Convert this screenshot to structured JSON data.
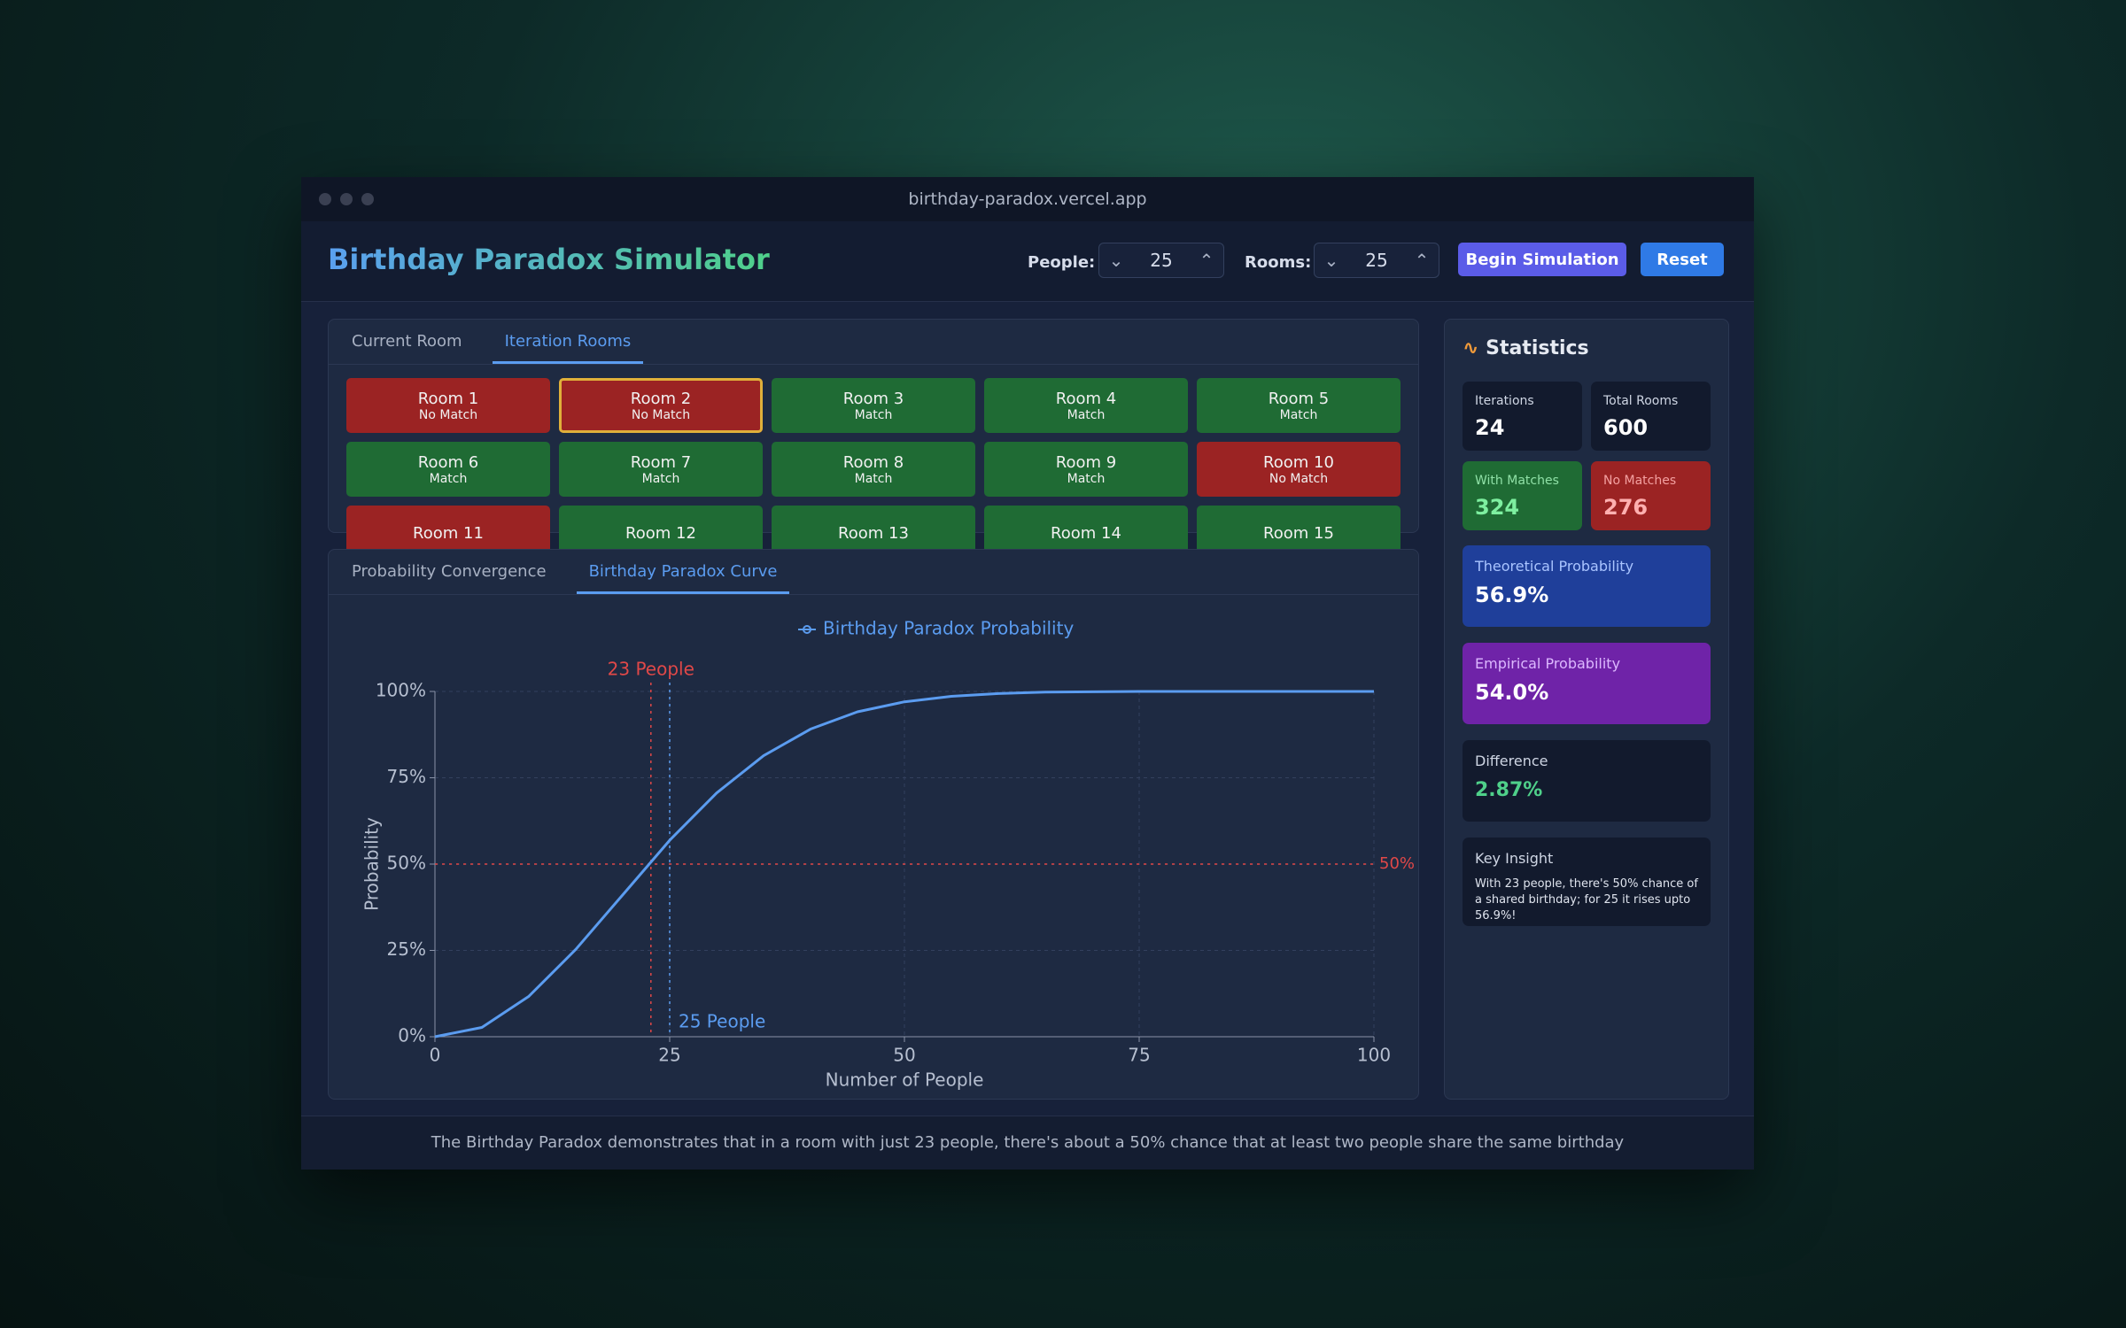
{
  "browser": {
    "url": "birthday-paradox.vercel.app"
  },
  "header": {
    "title": "Birthday Paradox Simulator",
    "people_label": "People:",
    "people": 25,
    "rooms_label": "Rooms:",
    "rooms": 25,
    "begin_button": "Begin Simulation",
    "reset_button": "Reset"
  },
  "room_tabs": {
    "items": [
      "Current Room",
      "Iteration Rooms"
    ],
    "active": 1
  },
  "rooms": {
    "selected": 1,
    "items": [
      {
        "name": "Room 1",
        "status": "No Match",
        "color": "#9b2323"
      },
      {
        "name": "Room 2",
        "status": "No Match",
        "color": "#9b2323"
      },
      {
        "name": "Room 3",
        "status": "Match",
        "color": "#1f6b34"
      },
      {
        "name": "Room 4",
        "status": "Match",
        "color": "#1f6b34"
      },
      {
        "name": "Room 5",
        "status": "Match",
        "color": "#1f6b34"
      },
      {
        "name": "Room 6",
        "status": "Match",
        "color": "#1f6b34"
      },
      {
        "name": "Room 7",
        "status": "Match",
        "color": "#1f6b34"
      },
      {
        "name": "Room 8",
        "status": "Match",
        "color": "#1f6b34"
      },
      {
        "name": "Room 9",
        "status": "Match",
        "color": "#1f6b34"
      },
      {
        "name": "Room 10",
        "status": "No Match",
        "color": "#9b2323"
      },
      {
        "name": "Room 11",
        "color": "#9b2323"
      },
      {
        "name": "Room 12",
        "color": "#1f6b34"
      },
      {
        "name": "Room 13",
        "color": "#1f6b34"
      },
      {
        "name": "Room 14",
        "color": "#1f6b34"
      },
      {
        "name": "Room 15",
        "color": "#1f6b34"
      }
    ]
  },
  "chart_tabs": {
    "items": [
      "Probability Convergence",
      "Birthday Paradox Curve"
    ],
    "active": 1
  },
  "chart_data": {
    "type": "line",
    "x_label": "Number of People",
    "y_label": "Probability",
    "x": [
      0,
      5,
      10,
      15,
      20,
      25,
      30,
      35,
      40,
      45,
      50,
      55,
      60,
      65,
      70,
      75,
      80,
      85,
      90,
      95,
      100
    ],
    "series": [
      {
        "name": "Birthday Paradox Probability",
        "color": "#5b9cf0",
        "values": [
          0,
          2.7,
          11.7,
          25.3,
          41.1,
          56.9,
          70.6,
          81.4,
          89.1,
          94.1,
          97.0,
          98.6,
          99.4,
          99.8,
          99.9,
          100,
          100,
          100,
          100,
          100,
          100
        ]
      }
    ],
    "xlim": [
      0,
      100
    ],
    "ylim": [
      0,
      100
    ],
    "xticks": [
      0,
      25,
      50,
      75,
      100
    ],
    "yticks": [
      {
        "value": 0,
        "label": "0%"
      },
      {
        "value": 25,
        "label": "25%"
      },
      {
        "value": 50,
        "label": "50%"
      },
      {
        "value": 75,
        "label": "75%"
      },
      {
        "value": 100,
        "label": "100%"
      }
    ],
    "grid": true,
    "legend": "top",
    "vlines": [
      {
        "x": 23,
        "label": "23 People",
        "color": "#e04848"
      },
      {
        "x": 25,
        "label": "25 People",
        "color": "#5b9cf0"
      }
    ],
    "hlines": [
      {
        "y": 50,
        "label": "50%",
        "color": "#e04848"
      }
    ]
  },
  "statistics": {
    "title": "Statistics",
    "iterations_label": "Iterations",
    "iterations": 24,
    "total_rooms_label": "Total Rooms",
    "total_rooms": 600,
    "with_matches_label": "With Matches",
    "with_matches": 324,
    "no_matches_label": "No Matches",
    "no_matches": 276,
    "theoretical_label": "Theoretical Probability",
    "theoretical": "56.9%",
    "empirical_label": "Empirical Probability",
    "empirical": "54.0%",
    "difference_label": "Difference",
    "difference": "2.87%",
    "insight_label": "Key Insight",
    "insight": "With 23 people, there's 50% chance of a shared birthday; for 25 it rises upto 56.9%!"
  },
  "footer": {
    "text": "The Birthday Paradox demonstrates that in a room with just 23 people, there's about a 50% chance that at least two people share the same birthday"
  }
}
